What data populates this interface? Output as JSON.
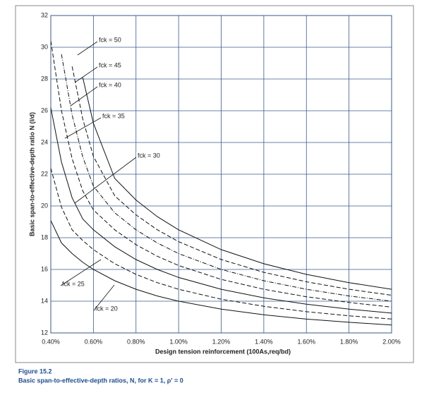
{
  "chart_data": {
    "type": "line",
    "x_label": "Design tension reinforcement (100As,req/bd)",
    "y_label": "Basic span-to-effective-depth ratio N (l/d)",
    "figure_label": "Figure 15.2",
    "caption": "Basic span-to-effective-depth ratios, N, for K = 1, ρ' = 0",
    "x": [
      0.4,
      0.45,
      0.5,
      0.55,
      0.6,
      0.7,
      0.8,
      0.9,
      1.0,
      1.2,
      1.4,
      1.6,
      1.8,
      2.0
    ],
    "xlim": [
      0.4,
      2.0
    ],
    "xticks": [
      {
        "value": 0.4,
        "label": "0.40%"
      },
      {
        "value": 0.6,
        "label": "0.60%"
      },
      {
        "value": 0.8,
        "label": "0.80%"
      },
      {
        "value": 1.0,
        "label": "1.00%"
      },
      {
        "value": 1.2,
        "label": "1.20%"
      },
      {
        "value": 1.4,
        "label": "1.40%"
      },
      {
        "value": 1.6,
        "label": "1.60%"
      },
      {
        "value": 1.8,
        "label": "1.80%"
      },
      {
        "value": 2.0,
        "label": "2.00%"
      }
    ],
    "ylim": [
      12,
      32
    ],
    "yticks": [
      12,
      14,
      16,
      18,
      20,
      22,
      24,
      26,
      28,
      30,
      32
    ],
    "grid": true,
    "series": [
      {
        "name": "fck = 50",
        "color": "#111111",
        "style": "solid",
        "values": [
          null,
          null,
          null,
          28.09,
          25.21,
          21.74,
          20.375,
          19.33,
          18.5,
          17.25,
          16.36,
          15.69,
          15.17,
          14.75
        ]
      },
      {
        "name": "fck = 45",
        "color": "#111111",
        "style": "dashed",
        "values": [
          null,
          null,
          28.79,
          25.48,
          23.12,
          20.64,
          19.44,
          18.5,
          17.75,
          16.625,
          15.82,
          15.22,
          14.75,
          14.375
        ]
      },
      {
        "name": "fck = 40",
        "color": "#111111",
        "style": "dashdot",
        "values": [
          null,
          29.56,
          25.74,
          23.09,
          21.25,
          19.57,
          18.5,
          17.67,
          17.0,
          16.0,
          15.29,
          14.75,
          14.33,
          14.0
        ]
      },
      {
        "name": "fck = 35",
        "color": "#111111",
        "style": "dashed",
        "values": [
          30.4,
          26.01,
          22.98,
          20.94,
          19.75,
          18.5,
          17.56,
          16.83,
          16.25,
          15.375,
          14.75,
          14.28,
          13.92,
          13.625
        ]
      },
      {
        "name": "fck = 30",
        "color": "#111111",
        "style": "solid",
        "values": [
          26.18,
          22.77,
          20.52,
          19.18,
          18.5,
          17.43,
          16.62,
          16.0,
          15.5,
          14.75,
          14.21,
          13.81,
          13.5,
          13.25
        ]
      },
      {
        "name": "fck = 25",
        "color": "#111111",
        "style": "dashed",
        "values": [
          22.375,
          19.93,
          18.5,
          17.82,
          17.25,
          16.36,
          15.69,
          15.17,
          14.75,
          14.125,
          13.68,
          13.34,
          13.08,
          12.875
        ]
      },
      {
        "name": "fck = 20",
        "color": "#111111",
        "style": "solid",
        "values": [
          19.08,
          17.67,
          17.0,
          16.45,
          16.0,
          15.29,
          14.75,
          14.33,
          14.0,
          13.5,
          13.14,
          12.87,
          12.67,
          12.5
        ]
      }
    ]
  }
}
